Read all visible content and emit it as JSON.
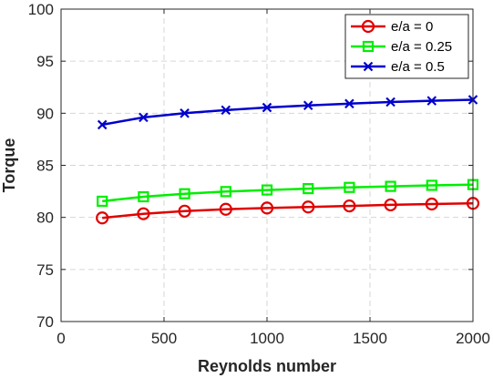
{
  "chart_data": {
    "type": "line",
    "xlabel": "Reynolds number",
    "ylabel": "Torque",
    "xlim": [
      0,
      2000
    ],
    "ylim": [
      70,
      100
    ],
    "xticks": [
      0,
      500,
      1000,
      1500,
      2000
    ],
    "yticks": [
      70,
      75,
      80,
      85,
      90,
      95,
      100
    ],
    "grid": true,
    "legend_position": "top-right",
    "x": [
      200,
      400,
      600,
      800,
      1000,
      1200,
      1400,
      1600,
      1800,
      2000
    ],
    "series": [
      {
        "name": "e/a = 0",
        "marker": "circle",
        "color": "#e00000",
        "values": [
          79.95,
          80.35,
          80.6,
          80.78,
          80.9,
          81.0,
          81.1,
          81.2,
          81.28,
          81.35
        ]
      },
      {
        "name": "e/a = 0.25",
        "marker": "square",
        "color": "#00ee00",
        "values": [
          81.55,
          81.98,
          82.27,
          82.48,
          82.63,
          82.76,
          82.88,
          82.98,
          83.08,
          83.15
        ]
      },
      {
        "name": "e/a = 0.5",
        "marker": "x",
        "color": "#0000cc",
        "values": [
          88.9,
          89.6,
          90.0,
          90.3,
          90.55,
          90.75,
          90.92,
          91.08,
          91.2,
          91.3
        ]
      }
    ]
  }
}
